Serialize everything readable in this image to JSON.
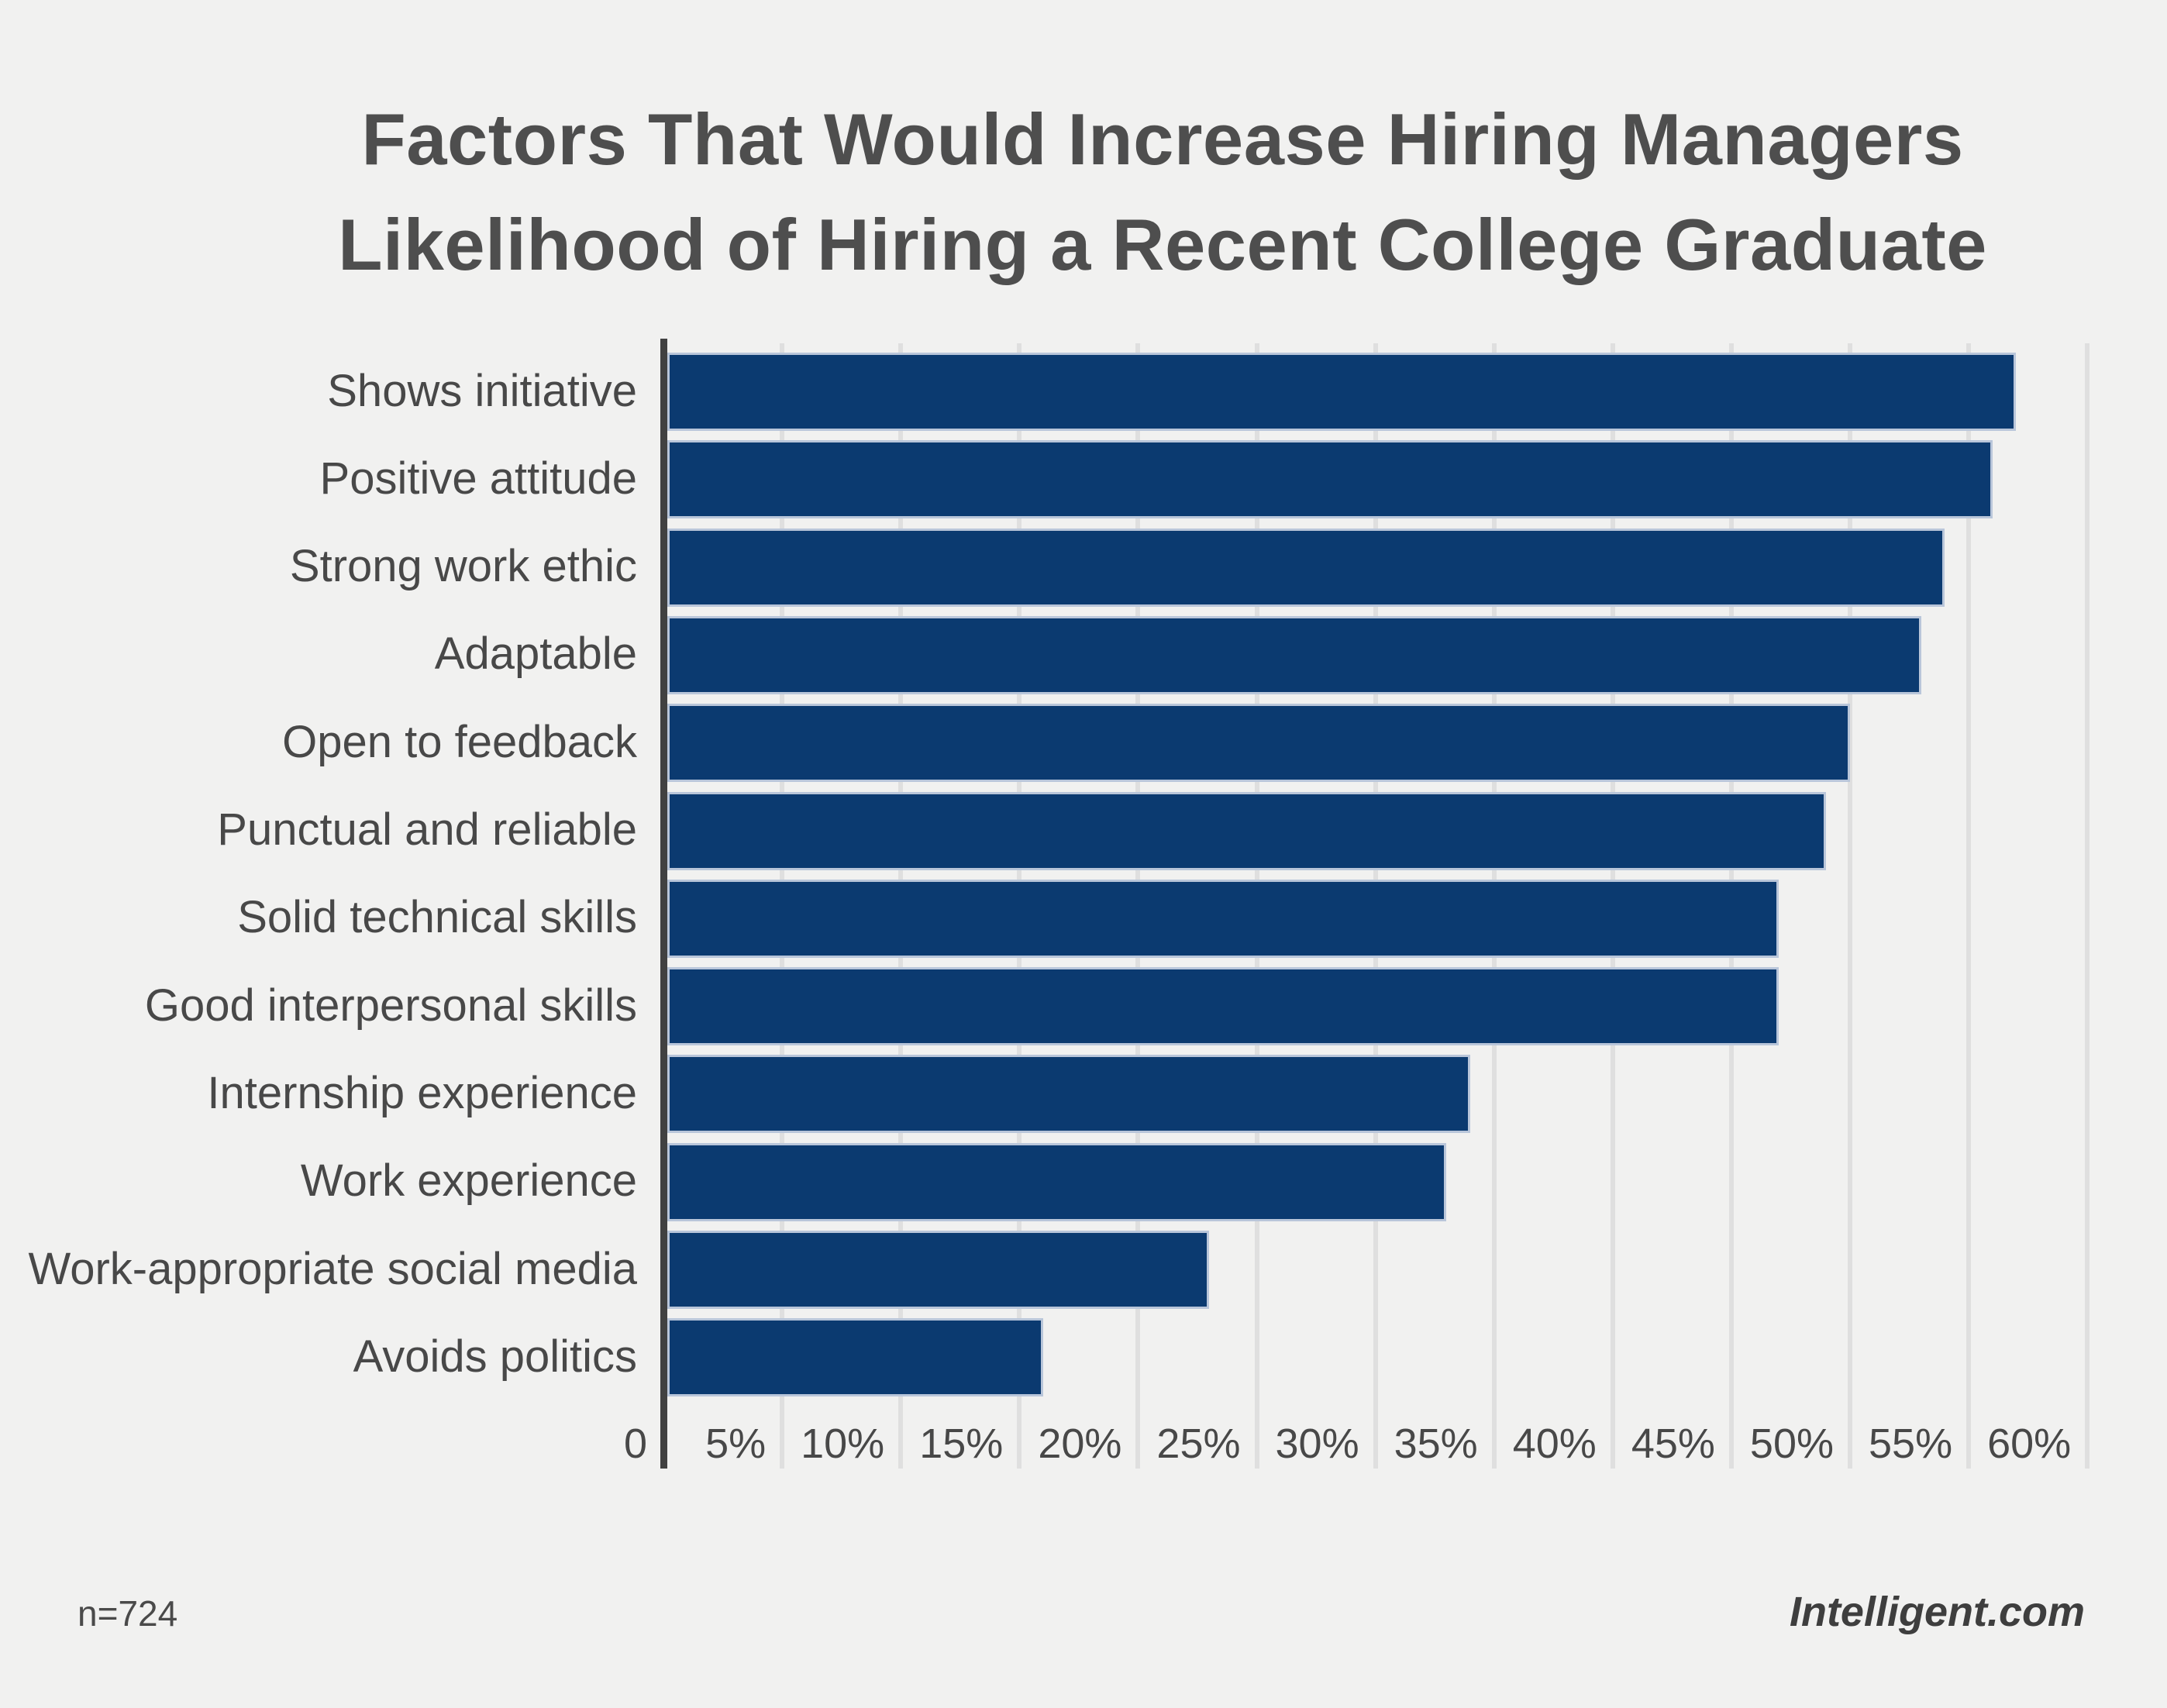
{
  "title": {
    "line1": "Factors That Would Increase Hiring Managers",
    "line2": "Likelihood of Hiring a Recent College Graduate"
  },
  "footer": {
    "sample_size": "n=724",
    "source": "Intelligent.com"
  },
  "colors": {
    "background": "#f1f1f0",
    "bar_fill": "#0b3a70",
    "bar_outline": "#b9c6da",
    "gridline": "#dfdfdf",
    "axis_line": "#414141",
    "title_text": "#4e4e4e",
    "label_text": "#484848"
  },
  "chart_data": {
    "type": "bar",
    "orientation": "horizontal",
    "title": "Factors That Would Increase Hiring Managers Likelihood of Hiring a Recent College Graduate",
    "categories": [
      "Shows initiative",
      "Positive attitude",
      "Strong work ethic",
      "Adaptable",
      "Open to feedback",
      "Punctual and reliable",
      "Solid technical skills",
      "Good interpersonal skills",
      "Internship experience",
      "Work experience",
      "Work-appropriate social media",
      "Avoids politics"
    ],
    "values": [
      57,
      56,
      54,
      53,
      50,
      49,
      47,
      47,
      34,
      33,
      23,
      16
    ],
    "unit": "%",
    "xlabel": "",
    "ylabel": "",
    "x_axis": {
      "min": 0,
      "max": 60,
      "tick_step": 5,
      "tick_labels": [
        "0",
        "5%",
        "10%",
        "15%",
        "20%",
        "25%",
        "30%",
        "35%",
        "40%",
        "45%",
        "50%",
        "55%",
        "60%"
      ]
    },
    "grid": true,
    "legend": false,
    "annotations": [
      "n=724",
      "Intelligent.com"
    ]
  }
}
